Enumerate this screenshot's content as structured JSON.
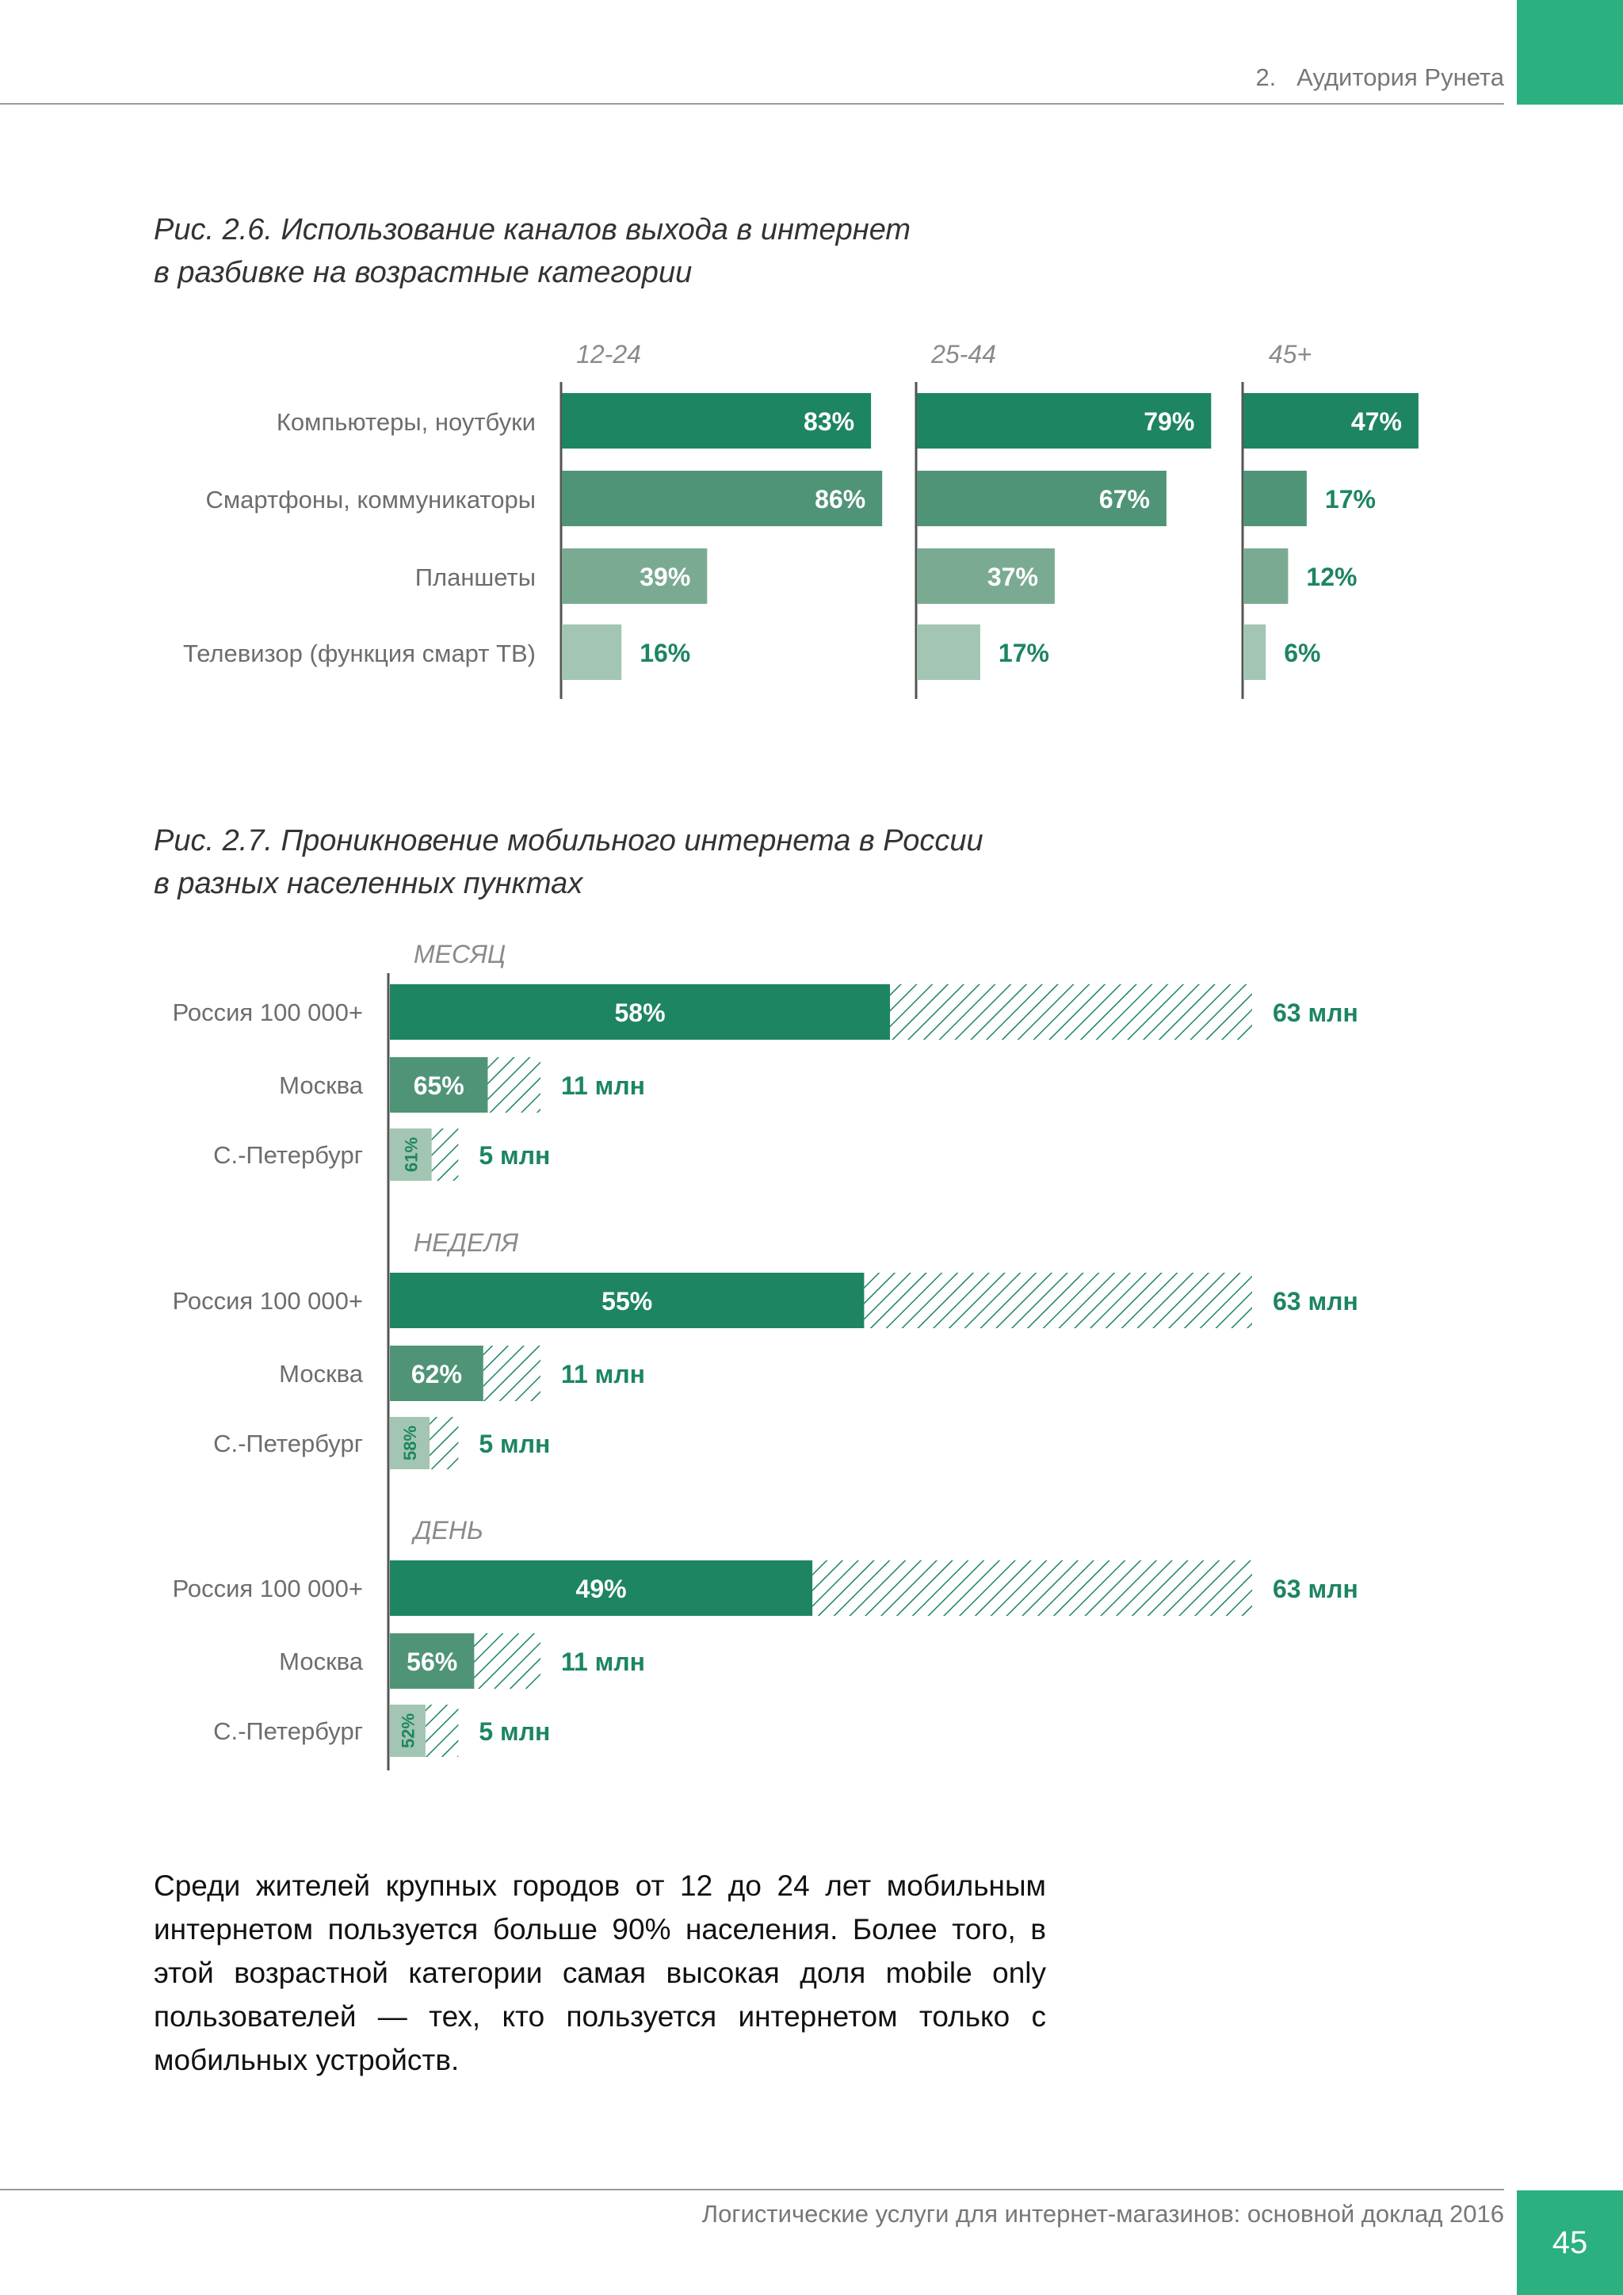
{
  "header": {
    "section_number": "2.",
    "section_title": "Аудитория Рунета"
  },
  "footer": {
    "title": "Логистические услуги для интернет-магазинов: основной доклад 2016",
    "page_number": "45"
  },
  "colors": {
    "accent": "#2bb07f",
    "dark": "#1d8561",
    "mid": "#509478",
    "light": "#7aab92",
    "pale": "#a3c5b3",
    "label_green": "#1d8561"
  },
  "figure1": {
    "caption_line1": "Рис. 2.6. Использование каналов выхода в интернет",
    "caption_line2": "в разбивке на возрастные категории"
  },
  "figure2": {
    "caption_line1": "Рис. 2.7. Проникновение мобильного интернета в России",
    "caption_line2": "в разных населенных пунктах"
  },
  "body": {
    "paragraph": "Среди жителей крупных городов от 12 до 24 лет мобильным интернетом пользуется больше 90% населения. Более того, в этой возрастной категории самая высокая доля mobile only пользователей — тех, кто пользуется интернетом только с мобильных устройств."
  },
  "chart_data": [
    {
      "type": "bar",
      "title": "Рис. 2.6. Использование каналов выхода в интернет в разбивке на возрастные категории",
      "categories": [
        "Компьютеры, ноутбуки",
        "Смартфоны, коммуникаторы",
        "Планшеты",
        "Телевизор (функция смарт ТВ)"
      ],
      "series": [
        {
          "name": "12-24",
          "values": [
            83,
            86,
            39,
            16
          ]
        },
        {
          "name": "25-44",
          "values": [
            79,
            67,
            37,
            17
          ]
        },
        {
          "name": "45+",
          "values": [
            47,
            17,
            12,
            6
          ]
        }
      ],
      "unit": "%",
      "xlim": [
        0,
        100
      ]
    },
    {
      "type": "bar",
      "title": "Рис. 2.7. Проникновение мобильного интернета в России в разных населенных пунктах",
      "groups": [
        {
          "name": "МЕСЯЦ",
          "rows": [
            {
              "city": "Россия 100 000+",
              "percent": 58,
              "population": "63 млн",
              "population_mln": 63
            },
            {
              "city": "Москва",
              "percent": 65,
              "population": "11 млн",
              "population_mln": 11
            },
            {
              "city": "С.-Петербург",
              "percent": 61,
              "population": "5 млн",
              "population_mln": 5
            }
          ]
        },
        {
          "name": "НЕДЕЛЯ",
          "rows": [
            {
              "city": "Россия 100 000+",
              "percent": 55,
              "population": "63 млн",
              "population_mln": 63
            },
            {
              "city": "Москва",
              "percent": 62,
              "population": "11 млн",
              "population_mln": 11
            },
            {
              "city": "С.-Петербург",
              "percent": 58,
              "population": "5 млн",
              "population_mln": 5
            }
          ]
        },
        {
          "name": "ДЕНЬ",
          "rows": [
            {
              "city": "Россия 100 000+",
              "percent": 49,
              "population": "63 млн",
              "population_mln": 63
            },
            {
              "city": "Москва",
              "percent": 56,
              "population": "11 млн",
              "population_mln": 11
            },
            {
              "city": "С.-Петербург",
              "percent": 52,
              "population": "5 млн",
              "population_mln": 5
            }
          ]
        }
      ],
      "legend": "solid = users share (%), hatched = remaining population"
    }
  ]
}
